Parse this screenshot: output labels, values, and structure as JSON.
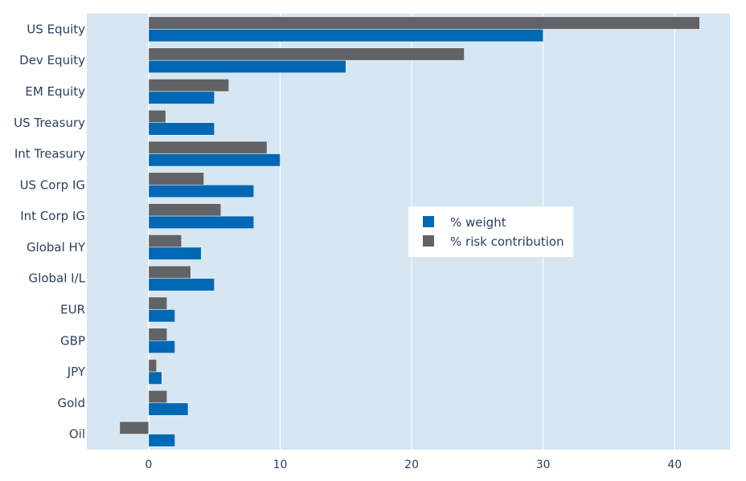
{
  "chart_data": {
    "type": "bar",
    "orientation": "horizontal",
    "title": "",
    "xlabel": "",
    "ylabel": "",
    "categories": [
      "US Equity",
      "Dev Equity",
      "EM Equity",
      "US Treasury",
      "Int Treasury",
      "US Corp IG",
      "Int Corp IG",
      "Global HY",
      "Global I/L",
      "EUR",
      "GBP",
      "JPY",
      "Gold",
      "Oil"
    ],
    "series": [
      {
        "name": "% weight",
        "color": "#0068b5",
        "values": [
          30,
          15,
          5,
          5,
          10,
          8,
          8,
          4,
          5,
          2,
          2,
          1,
          3,
          2
        ]
      },
      {
        "name": "% risk contribution",
        "color": "#626366",
        "values": [
          41.9,
          24,
          6.1,
          1.3,
          9,
          4.2,
          5.5,
          2.5,
          3.2,
          1.4,
          1.4,
          0.6,
          1.4,
          -2.2
        ]
      }
    ],
    "xlim": [
      -4.7,
      44.2
    ],
    "xticks": [
      0,
      10,
      20,
      30,
      40
    ],
    "xtick_labels": [
      "0",
      "10",
      "20",
      "30",
      "40"
    ],
    "grid": true,
    "legend_position": "center-right",
    "plot_background": "#d6e6f2"
  }
}
